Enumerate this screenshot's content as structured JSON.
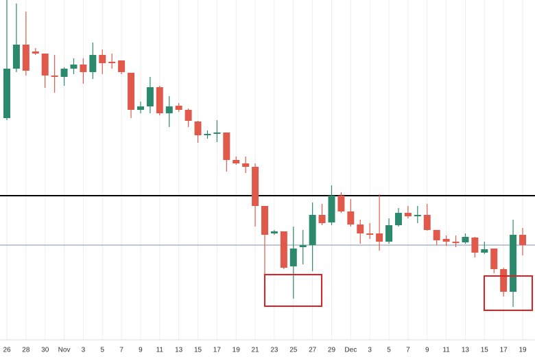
{
  "chart_data": {
    "type": "candlestick",
    "categories": [
      "26",
      null,
      "28",
      null,
      "30",
      null,
      "Nov",
      null,
      "3",
      null,
      "5",
      null,
      "7",
      null,
      "9",
      null,
      "11",
      null,
      "13",
      null,
      "15",
      null,
      "17",
      null,
      "19",
      null,
      "21",
      null,
      "23",
      null,
      "25",
      null,
      "27",
      null,
      "29",
      null,
      "Dec",
      null,
      "3",
      null,
      "5",
      null,
      "7",
      null,
      "9",
      null,
      "11",
      null,
      "13",
      null,
      "15",
      null,
      "17",
      null,
      "19"
    ],
    "open": [
      348,
      420,
      455,
      445,
      442,
      410,
      408,
      420,
      426,
      415,
      440,
      430,
      432,
      414,
      360,
      365,
      393,
      355,
      366,
      360,
      343,
      323,
      325,
      327,
      287,
      282,
      277,
      220,
      180,
      183,
      132,
      160,
      163,
      207,
      196,
      235,
      212,
      193,
      180,
      180,
      168,
      192,
      210,
      205,
      207,
      185,
      172,
      168,
      167,
      174,
      152,
      158,
      128,
      95,
      178
    ],
    "high": [
      520,
      515,
      503,
      450,
      442,
      440,
      422,
      435,
      435,
      458,
      448,
      442,
      432,
      414,
      372,
      408,
      395,
      380,
      370,
      362,
      344,
      330,
      345,
      327,
      292,
      292,
      282,
      220,
      185,
      183,
      190,
      185,
      225,
      223,
      250,
      240,
      230,
      200,
      195,
      237,
      202,
      217,
      220,
      220,
      223,
      185,
      177,
      177,
      180,
      175,
      168,
      158,
      130,
      200,
      188
    ],
    "low": [
      345,
      415,
      410,
      440,
      392,
      385,
      395,
      412,
      398,
      405,
      412,
      420,
      412,
      348,
      355,
      355,
      352,
      335,
      357,
      335,
      312,
      318,
      313,
      270,
      280,
      268,
      190,
      120,
      178,
      128,
      85,
      135,
      125,
      192,
      192,
      210,
      190,
      165,
      172,
      155,
      165,
      190,
      202,
      195,
      184,
      163,
      162,
      160,
      165,
      145,
      150,
      122,
      88,
      73,
      148
    ],
    "close": [
      420,
      455,
      417,
      442,
      410,
      408,
      420,
      426,
      415,
      440,
      428,
      428,
      415,
      360,
      365,
      393,
      355,
      365,
      360,
      344,
      323,
      325,
      327,
      287,
      282,
      277,
      220,
      178,
      183,
      130,
      158,
      163,
      207,
      195,
      235,
      212,
      193,
      180,
      178,
      168,
      192,
      210,
      205,
      207,
      185,
      170,
      168,
      166,
      175,
      152,
      157,
      128,
      95,
      178,
      163
    ],
    "up_color": "#2b8a6e",
    "down_color": "#e0594b",
    "ylim": [
      0,
      520
    ],
    "grid": true,
    "lines": [
      {
        "value": 235,
        "color": "#000000"
      },
      {
        "value": 163,
        "color": "#7f93a8"
      }
    ]
  }
}
